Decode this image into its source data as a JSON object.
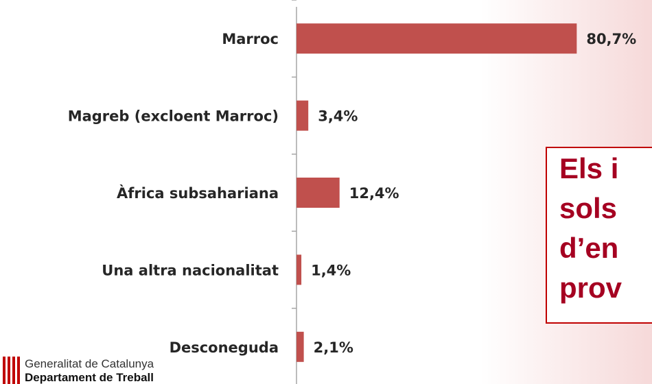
{
  "chart_data": {
    "type": "bar",
    "orientation": "horizontal",
    "categories": [
      "Marroc",
      "Magreb (excloent Marroc)",
      "Àfrica subsahariana",
      "Una altra nacionalitat",
      "Desconeguda"
    ],
    "values": [
      80.7,
      3.4,
      12.4,
      1.4,
      2.1
    ],
    "value_labels": [
      "80,7%",
      "3,4%",
      "12,4%",
      "1,4%",
      "2,1%"
    ],
    "color": "#c0504d",
    "xlim": [
      0,
      100
    ]
  },
  "callout": {
    "lines": [
      "Els i",
      "sols",
      "d’en",
      "prov"
    ]
  },
  "logo": {
    "line1": "Generalitat de Catalunya",
    "line2": "Departament de Treball"
  }
}
